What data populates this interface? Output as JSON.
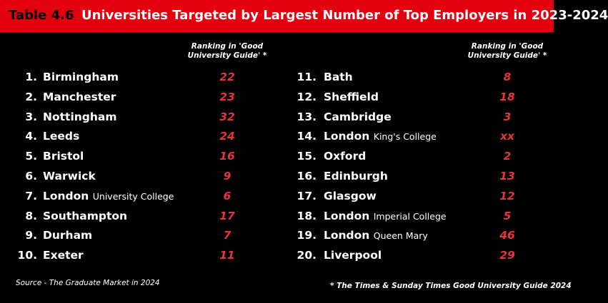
{
  "header": {
    "label": "Table 4.6",
    "title": "Universities Targeted by Largest Number of Top Employers in 2023-2024"
  },
  "columns": [
    {
      "ranking_header": "Ranking in 'Good University Guide' *",
      "rows": [
        {
          "rank": "1.",
          "name": "Birmingham",
          "ranking": 22
        },
        {
          "rank": "2.",
          "name": "Manchester",
          "ranking": 23
        },
        {
          "rank": "3.",
          "name": "Nottingham",
          "ranking": 32
        },
        {
          "rank": "4.",
          "name": "Leeds",
          "ranking": 24
        },
        {
          "rank": "5.",
          "name": "Bristol",
          "ranking": 16
        },
        {
          "rank": "6.",
          "name": "Warwick",
          "ranking": 9
        },
        {
          "rank": "7.",
          "name": "London",
          "detail": "University College",
          "ranking": 6
        },
        {
          "rank": "8.",
          "name": "Southampton",
          "ranking": 17
        },
        {
          "rank": "9.",
          "name": "Durham",
          "ranking": 7
        },
        {
          "rank": "10.",
          "name": "Exeter",
          "ranking": 11
        }
      ]
    },
    {
      "ranking_header": "Ranking in 'Good University Guide' *",
      "rows": [
        {
          "rank": "11.",
          "name": "Bath",
          "ranking": 8
        },
        {
          "rank": "12.",
          "name": "Sheffield",
          "ranking": 18
        },
        {
          "rank": "13.",
          "name": "Cambridge",
          "ranking": 3
        },
        {
          "rank": "14.",
          "name": "London",
          "detail": "King's College",
          "ranking": "xx"
        },
        {
          "rank": "15.",
          "name": "Oxford",
          "ranking": 2
        },
        {
          "rank": "16.",
          "name": "Edinburgh",
          "ranking": 13
        },
        {
          "rank": "17.",
          "name": "Glasgow",
          "ranking": 12
        },
        {
          "rank": "18.",
          "name": "London",
          "detail": "Imperial College",
          "ranking": 5
        },
        {
          "rank": "19.",
          "name": "London",
          "detail": "Queen Mary",
          "ranking": 46
        },
        {
          "rank": "20.",
          "name": "Liverpool",
          "ranking": 29
        }
      ]
    }
  ],
  "footer": {
    "source": "Source - The Graduate Market in 2024",
    "note": "* The Times & Sunday Times Good University Guide 2024"
  }
}
